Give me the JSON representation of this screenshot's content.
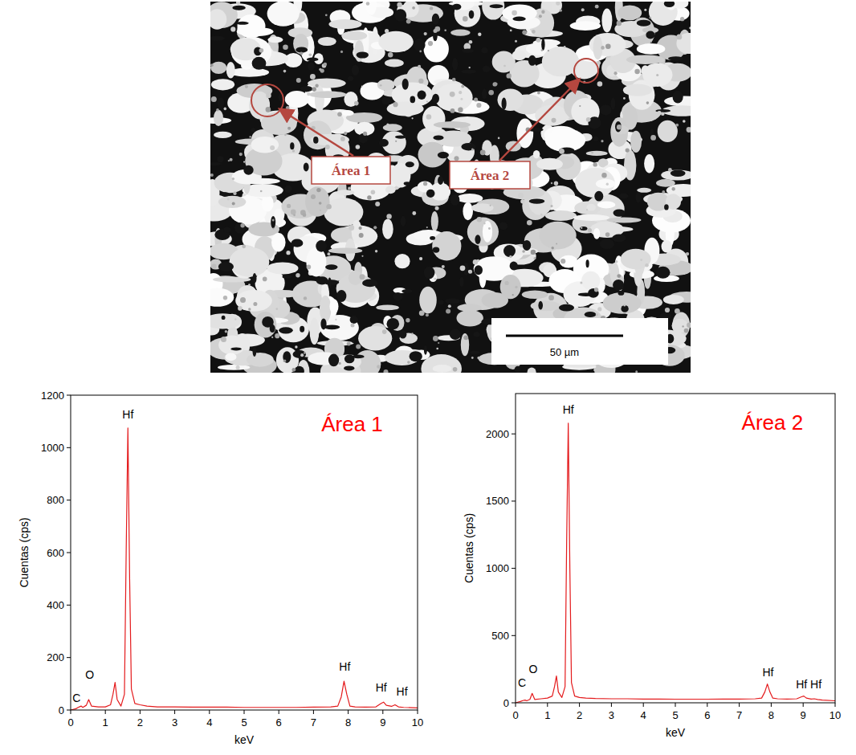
{
  "micrograph": {
    "labels": [
      "Área 1",
      "Área 2"
    ],
    "scale_bar": "50 µm"
  },
  "chart_data": [
    {
      "type": "line",
      "title": "Área 1",
      "x_label": "keV",
      "y_label": "Cuentas (cps)",
      "color": "#e41a1c",
      "xlim": [
        0,
        10
      ],
      "xticks": [
        0,
        1,
        2,
        3,
        4,
        5,
        6,
        7,
        8,
        9,
        10
      ],
      "ylim": [
        0,
        1200
      ],
      "yticks": [
        0,
        200,
        400,
        600,
        800,
        1000,
        1200
      ],
      "x": [
        0,
        0.15,
        0.25,
        0.3,
        0.35,
        0.45,
        0.52,
        0.6,
        0.8,
        1.0,
        1.15,
        1.22,
        1.28,
        1.34,
        1.45,
        1.55,
        1.6,
        1.65,
        1.7,
        1.75,
        1.85,
        2.0,
        2.2,
        2.5,
        3,
        3.5,
        4,
        4.5,
        5,
        5.5,
        6,
        6.5,
        7,
        7.5,
        7.7,
        7.8,
        7.88,
        7.96,
        8.05,
        8.2,
        8.5,
        8.8,
        8.95,
        9.02,
        9.1,
        9.25,
        9.35,
        9.45,
        9.6,
        10
      ],
      "values": [
        0,
        5,
        12,
        15,
        10,
        18,
        40,
        15,
        12,
        12,
        20,
        60,
        105,
        40,
        15,
        60,
        600,
        1075,
        500,
        80,
        25,
        20,
        15,
        12,
        12,
        11,
        11,
        11,
        10,
        10,
        10,
        10,
        11,
        12,
        15,
        50,
        110,
        60,
        15,
        12,
        11,
        12,
        25,
        30,
        18,
        14,
        20,
        12,
        10,
        8
      ],
      "annotations": [
        {
          "text": "C",
          "x": 0.17,
          "y": 30
        },
        {
          "text": "O",
          "x": 0.55,
          "y": 120
        },
        {
          "text": "Hf",
          "x": 1.65,
          "y": 1110
        },
        {
          "text": "Hf",
          "x": 7.9,
          "y": 150
        },
        {
          "text": "Hf",
          "x": 8.95,
          "y": 70
        },
        {
          "text": "Hf",
          "x": 9.55,
          "y": 55
        }
      ]
    },
    {
      "type": "line",
      "title": "Área 2",
      "x_label": "keV",
      "y_label": "Cuentas (cps)",
      "color": "#e41a1c",
      "xlim": [
        0,
        10
      ],
      "xticks": [
        0,
        1,
        2,
        3,
        4,
        5,
        6,
        7,
        8,
        9,
        10
      ],
      "ylim": [
        0,
        2300
      ],
      "yticks": [
        0,
        500,
        1000,
        1500,
        2000
      ],
      "x": [
        0,
        0.15,
        0.25,
        0.3,
        0.35,
        0.45,
        0.52,
        0.6,
        0.8,
        1.0,
        1.15,
        1.22,
        1.28,
        1.34,
        1.45,
        1.55,
        1.6,
        1.65,
        1.7,
        1.75,
        1.85,
        2.0,
        2.2,
        2.5,
        3,
        3.5,
        4,
        4.5,
        5,
        5.5,
        6,
        6.5,
        7,
        7.5,
        7.7,
        7.8,
        7.88,
        7.96,
        8.05,
        8.2,
        8.5,
        8.8,
        8.95,
        9.02,
        9.1,
        9.25,
        9.35,
        9.45,
        9.6,
        10
      ],
      "values": [
        0,
        10,
        18,
        20,
        15,
        25,
        70,
        25,
        30,
        35,
        50,
        120,
        200,
        80,
        40,
        120,
        1200,
        2080,
        1000,
        150,
        50,
        40,
        35,
        32,
        30,
        30,
        28,
        28,
        27,
        27,
        27,
        28,
        28,
        30,
        35,
        80,
        140,
        80,
        35,
        30,
        28,
        30,
        45,
        50,
        35,
        28,
        30,
        25,
        20,
        15
      ],
      "annotations": [
        {
          "text": "C",
          "x": 0.2,
          "y": 120
        },
        {
          "text": "O",
          "x": 0.55,
          "y": 220
        },
        {
          "text": "Hf",
          "x": 1.65,
          "y": 2150
        },
        {
          "text": "Hf",
          "x": 7.9,
          "y": 200
        },
        {
          "text": "Hf",
          "x": 8.95,
          "y": 110
        },
        {
          "text": "Hf",
          "x": 9.4,
          "y": 110
        }
      ]
    }
  ]
}
